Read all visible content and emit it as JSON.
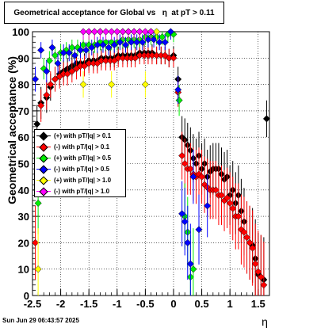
{
  "chart_data": {
    "type": "scatter",
    "title_prefix": "Geometrical acceptance for Global vs",
    "title_eta": "η",
    "title_suffix": "at pT > 0.11",
    "xlabel": "η",
    "ylabel": "Geometrical acceptance (%)",
    "xlim": [
      -2.5,
      1.7
    ],
    "ylim": [
      0,
      100
    ],
    "x_ticks": [
      "-2.5",
      "-2",
      "-1.5",
      "-1",
      "-0.5",
      "0",
      "0.5",
      "1",
      "1.5"
    ],
    "y_ticks": [
      "0",
      "10",
      "20",
      "30",
      "40",
      "50",
      "60",
      "70",
      "80",
      "90",
      "100"
    ],
    "grid": true,
    "legend_position": "center-left",
    "series": [
      {
        "name": "(+) with pT/|q| > 0.1",
        "color": "#000000",
        "x": [
          -2.42,
          -2.35,
          -2.25,
          -2.18,
          -2.1,
          -2.02,
          -1.95,
          -1.88,
          -1.8,
          -1.72,
          -1.65,
          -1.58,
          -1.5,
          -1.42,
          -1.35,
          -1.28,
          -1.2,
          -1.12,
          -1.05,
          -0.98,
          -0.9,
          -0.82,
          -0.75,
          -0.68,
          -0.6,
          -0.52,
          -0.45,
          -0.38,
          -0.3,
          -0.22,
          -0.15,
          -0.08,
          0.0,
          0.08,
          0.15,
          0.2,
          0.25,
          0.3,
          0.35,
          0.4,
          0.45,
          0.5,
          0.55,
          0.6,
          0.65,
          0.7,
          0.75,
          0.8,
          0.85,
          0.9,
          0.95,
          1.0,
          1.05,
          1.1,
          1.15,
          1.2,
          1.25,
          1.3,
          1.35,
          1.4,
          1.45,
          1.5,
          1.55,
          1.6,
          1.65
        ],
        "y": [
          65,
          73,
          75,
          79,
          82,
          84,
          85,
          86,
          87,
          88,
          88,
          88,
          89,
          89,
          89,
          90,
          90,
          90,
          90,
          91,
          91,
          91,
          91,
          91,
          92,
          92,
          92,
          92,
          91,
          91,
          91,
          90,
          91,
          82,
          60,
          59,
          57,
          55,
          52,
          50,
          53,
          48,
          50,
          45,
          47,
          48,
          48,
          48,
          46,
          44,
          45,
          38,
          40,
          35,
          38,
          32,
          28,
          22,
          20,
          19,
          14,
          8,
          7,
          6,
          67
        ]
      },
      {
        "name": "(-) with pT/|q| > 0.1",
        "color": "#ff0000",
        "x": [
          -2.45,
          -2.35,
          -2.25,
          -2.18,
          -2.1,
          -2.02,
          -1.95,
          -1.88,
          -1.8,
          -1.72,
          -1.65,
          -1.58,
          -1.5,
          -1.42,
          -1.35,
          -1.28,
          -1.2,
          -1.12,
          -1.05,
          -0.98,
          -0.9,
          -0.82,
          -0.75,
          -0.68,
          -0.6,
          -0.52,
          -0.45,
          -0.38,
          -0.3,
          -0.22,
          -0.15,
          -0.08,
          0.0,
          0.08,
          0.15,
          0.2,
          0.25,
          0.3,
          0.35,
          0.4,
          0.45,
          0.5,
          0.55,
          0.6,
          0.65,
          0.7,
          0.75,
          0.8,
          0.85,
          0.9,
          0.95,
          1.0,
          1.05,
          1.1,
          1.15,
          1.2,
          1.25,
          1.3,
          1.35,
          1.4,
          1.45,
          1.5,
          1.55,
          1.6
        ],
        "y": [
          20,
          72,
          76,
          80,
          82,
          83,
          84,
          84,
          85,
          86,
          87,
          87,
          88,
          88,
          88,
          89,
          89,
          89,
          89,
          90,
          90,
          90,
          90,
          90,
          91,
          91,
          91,
          91,
          91,
          91,
          91,
          90,
          90,
          77,
          53,
          50,
          48,
          48,
          46,
          45,
          46,
          45,
          42,
          41,
          40,
          40,
          40,
          38,
          38,
          36,
          37,
          35,
          33,
          30,
          30,
          25,
          24,
          22,
          20,
          18,
          12,
          9,
          7,
          4
        ]
      },
      {
        "name": "(+) with pT/|q| > 0.5",
        "color": "#00ee00",
        "x": [
          -2.4,
          -2.3,
          -2.2,
          -2.1,
          -2.0,
          -1.9,
          -1.8,
          -1.7,
          -1.6,
          -1.5,
          -1.4,
          -1.3,
          -1.2,
          -1.1,
          -1.0,
          -0.9,
          -0.8,
          -0.7,
          -0.6,
          -0.5,
          -0.4,
          -0.3,
          -0.2,
          -0.1,
          0.0,
          0.1,
          0.2,
          0.25,
          0.3,
          0.35
        ],
        "y": [
          35,
          86,
          89,
          91,
          92,
          93,
          94,
          94,
          95,
          95,
          95,
          96,
          96,
          96,
          96,
          97,
          97,
          97,
          97,
          98,
          98,
          98,
          98,
          99,
          99,
          74,
          30,
          24,
          7,
          10
        ]
      },
      {
        "name": "(-) with pT/|q| > 0.5",
        "color": "#0000ff",
        "x": [
          -2.45,
          -2.35,
          -2.25,
          -2.15,
          -2.05,
          -1.95,
          -1.85,
          -1.75,
          -1.65,
          -1.55,
          -1.45,
          -1.35,
          -1.25,
          -1.15,
          -1.05,
          -0.95,
          -0.85,
          -0.75,
          -0.65,
          -0.55,
          -0.45,
          -0.35,
          -0.25,
          -0.15,
          -0.05,
          0.08,
          0.15,
          0.2,
          0.25,
          0.3,
          0.35,
          0.45,
          0.6
        ],
        "y": [
          82,
          93,
          85,
          94,
          88,
          92,
          92,
          91,
          93,
          93,
          94,
          95,
          95,
          94,
          95,
          96,
          95,
          96,
          96,
          96,
          97,
          97,
          96,
          96,
          100,
          78,
          31,
          28,
          20,
          12,
          45,
          25,
          34
        ]
      },
      {
        "name": "(+) with pT/|q| > 1.0",
        "color": "#ffff00",
        "x": [
          -2.4,
          -1.6,
          -1.5,
          -1.4,
          -1.3,
          -1.1,
          -1.0,
          -0.9,
          -0.8,
          -0.7,
          -0.6,
          -0.5,
          -0.4,
          -0.3
        ],
        "y": [
          10,
          80,
          100,
          100,
          100,
          80,
          100,
          100,
          100,
          100,
          100,
          80,
          100,
          100
        ]
      },
      {
        "name": "(-) with pT/|q| > 1.0",
        "color": "#ff00ff",
        "x": [
          -1.6,
          -1.5,
          -1.4,
          -1.3,
          -1.2,
          -1.1,
          -1.0,
          -0.9,
          -0.8,
          -0.7,
          -0.6,
          -0.5,
          -0.4
        ],
        "y": [
          100,
          100,
          100,
          100,
          100,
          100,
          100,
          100,
          100,
          100,
          100,
          100,
          100
        ]
      }
    ]
  },
  "footer": {
    "date": "Sun Jun 29 06:43:57 2025"
  }
}
